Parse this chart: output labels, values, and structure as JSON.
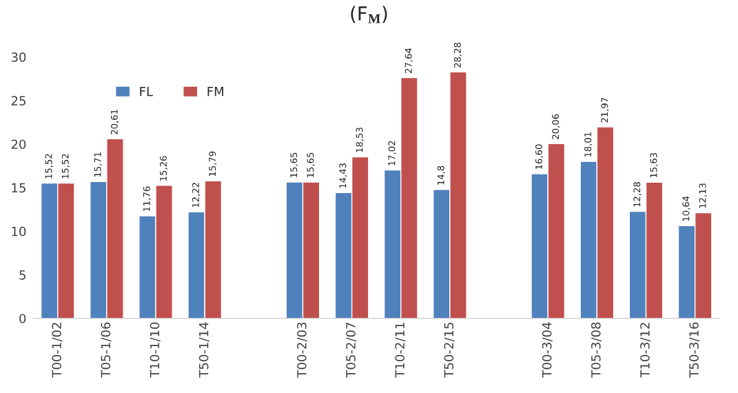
{
  "chart_data": {
    "type": "bar",
    "title": "(F$_{M}$)",
    "categories": [
      "T00-1/02",
      "T05-1/06",
      "T10-1/10",
      "T50-1/14",
      null,
      "T00-2/03",
      "T05-2/07",
      "T10-2/11",
      "T50-2/15",
      null,
      "T00-3/04",
      "T05-3/08",
      "T10-3/12",
      "T50-3/16"
    ],
    "series": [
      {
        "name": "FL",
        "color": "#4f81bd",
        "values": [
          15.52,
          15.71,
          11.76,
          12.22,
          null,
          15.65,
          14.43,
          17.02,
          14.8,
          null,
          16.6,
          18.01,
          12.28,
          10.64
        ],
        "value_labels": [
          "15,52",
          "15,71",
          "11,76",
          "12,22",
          null,
          "15,65",
          "14,43",
          "17,02",
          "14,8",
          null,
          "16,60",
          "18,01",
          "12,28",
          "10,64"
        ]
      },
      {
        "name": "FM",
        "color": "#c0504d",
        "values": [
          15.52,
          20.61,
          15.26,
          15.79,
          null,
          15.65,
          18.53,
          27.64,
          28.28,
          null,
          20.06,
          21.97,
          15.63,
          12.13
        ],
        "value_labels": [
          "15,52",
          "20,61",
          "15,26",
          "15,79",
          null,
          "15,65",
          "18,53",
          "27,64",
          "28,28",
          null,
          "20,06",
          "21,97",
          "15,63",
          "12,13"
        ]
      }
    ],
    "ylim": [
      0,
      30
    ],
    "yticks": [
      0,
      5,
      10,
      15,
      20,
      25,
      30
    ],
    "grid": false,
    "legend": "top left"
  }
}
